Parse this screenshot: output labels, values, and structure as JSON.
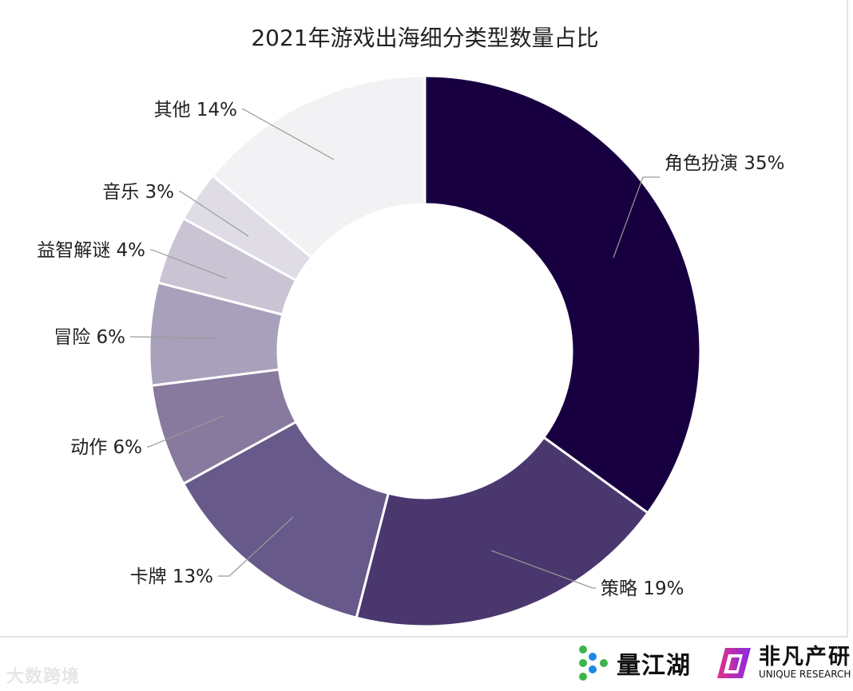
{
  "chart_data": {
    "type": "pie",
    "donut": true,
    "title": "2021年游戏出海细分类型数量占比",
    "categories": [
      "角色扮演",
      "策略",
      "卡牌",
      "动作",
      "冒险",
      "益智解谜",
      "音乐",
      "其他"
    ],
    "values": [
      35,
      19,
      13,
      6,
      6,
      4,
      3,
      14
    ],
    "labels": [
      "角色扮演 35%",
      "策略 19%",
      "卡牌 13%",
      "动作 6%",
      "冒险 6%",
      "益智解谜 4%",
      "音乐 3%",
      "其他 14%"
    ],
    "colors": [
      "#180040",
      "#4a376e",
      "#675a8a",
      "#877a9e",
      "#a9a0bb",
      "#c9c3d4",
      "#dfdce6",
      "#f2f2f4"
    ],
    "unit": "%",
    "start": "top, clockwise"
  },
  "logos": {
    "brand1": "量江湖",
    "brand2_cn": "非凡产研",
    "brand2_en": "UNIQUE RESEARCH",
    "watermark": "大数跨境"
  }
}
